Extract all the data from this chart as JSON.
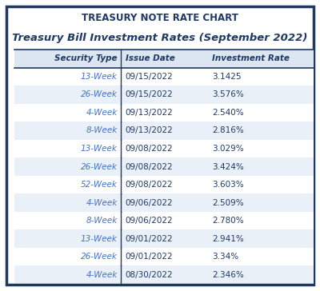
{
  "title": "TREASURY NOTE RATE CHART",
  "subtitle": "Treasury Bill Investment Rates (September 2022)",
  "columns": [
    "Security Type",
    "Issue Date",
    "Investment Rate"
  ],
  "rows": [
    [
      "13-Week",
      "09/15/2022",
      "3.1425"
    ],
    [
      "26-Week",
      "09/15/2022",
      "3.576%"
    ],
    [
      "4-Week",
      "09/13/2022",
      "2.540%"
    ],
    [
      "8-Week",
      "09/13/2022",
      "2.816%"
    ],
    [
      "13-Week",
      "09/08/2022",
      "3.029%"
    ],
    [
      "26-Week",
      "09/08/2022",
      "3.424%"
    ],
    [
      "52-Week",
      "09/08/2022",
      "3.603%"
    ],
    [
      "4-Week",
      "09/06/2022",
      "2.509%"
    ],
    [
      "8-Week",
      "09/06/2022",
      "2.780%"
    ],
    [
      "13-Week",
      "09/01/2022",
      "2.941%"
    ],
    [
      "26-Week",
      "09/01/2022",
      "3.34%"
    ],
    [
      "4-Week",
      "08/30/2022",
      "2.346%"
    ]
  ],
  "header_bg": "#dce6f1",
  "row_bg_even": "#ffffff",
  "row_bg_odd": "#eaf0f8",
  "border_color": "#1f3864",
  "title_color": "#1f3864",
  "header_text_color": "#1f3864",
  "col1_text_color": "#4472c4",
  "data_text_color": "#1f3864",
  "outer_border_color": "#1f3864",
  "background_color": "#ffffff",
  "title_fontsize": 8.5,
  "subtitle_fontsize": 9.5,
  "data_fontsize": 7.5
}
